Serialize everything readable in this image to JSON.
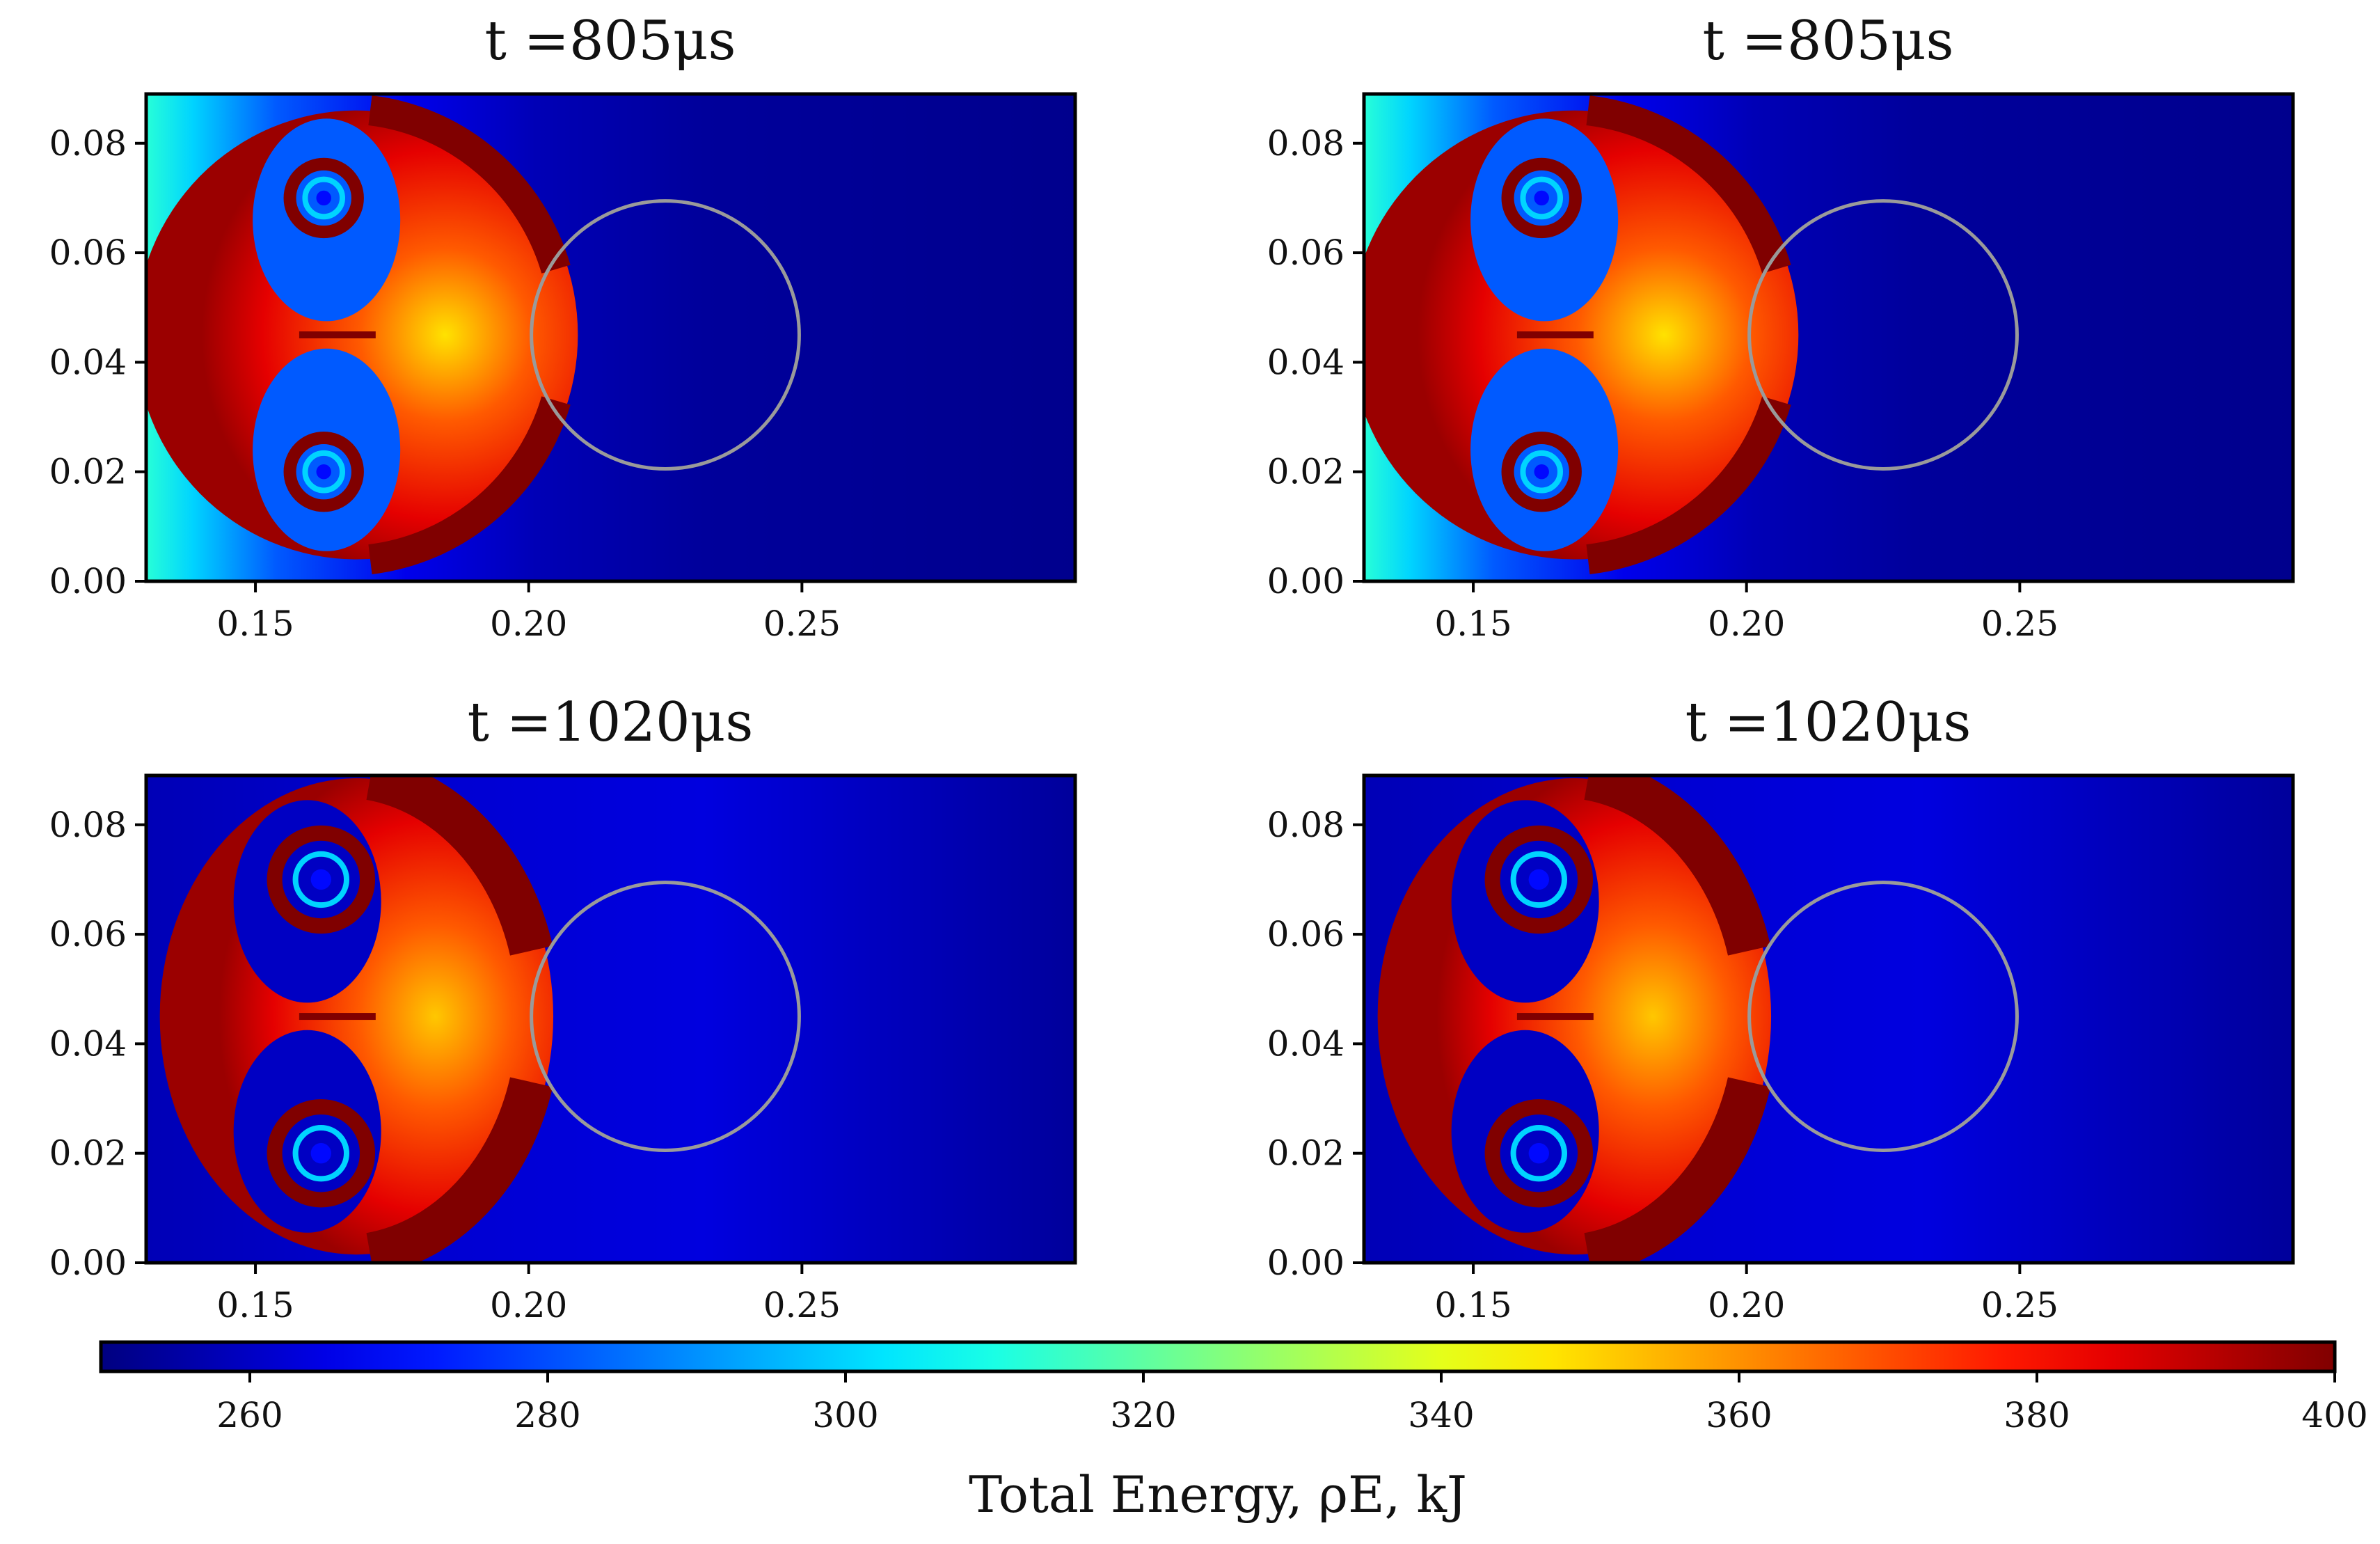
{
  "figure": {
    "colorbar": {
      "label": "Total Energy, ρE, kJ",
      "range": [
        250,
        400
      ],
      "ticks": [
        "260",
        "280",
        "300",
        "320",
        "340",
        "360",
        "380",
        "400"
      ],
      "colormap": "jet"
    }
  },
  "chart_data": [
    {
      "type": "heatmap",
      "title": "t =805μs",
      "xlim": [
        0.13,
        0.3
      ],
      "ylim": [
        0.0,
        0.089
      ],
      "xticks": [
        "0.15",
        "0.20",
        "0.25"
      ],
      "yticks": [
        "0.00",
        "0.02",
        "0.04",
        "0.06",
        "0.08"
      ],
      "circle": {
        "cx": 0.225,
        "cy": 0.045,
        "r": 0.0245,
        "color": "#9a9a9a"
      },
      "field": {
        "front_x": 0.209,
        "energy_min": 252,
        "energy_max": 400
      },
      "grid": false
    },
    {
      "type": "heatmap",
      "title": "t =805μs",
      "xlim": [
        0.13,
        0.3
      ],
      "ylim": [
        0.0,
        0.089
      ],
      "xticks": [
        "0.15",
        "0.20",
        "0.25"
      ],
      "yticks": [
        "0.00",
        "0.02",
        "0.04",
        "0.06",
        "0.08"
      ],
      "circle": {
        "cx": 0.225,
        "cy": 0.045,
        "r": 0.0245,
        "color": "#9a9a9a"
      },
      "field": {
        "front_x": 0.2095,
        "energy_min": 252,
        "energy_max": 400
      },
      "grid": false
    },
    {
      "type": "heatmap",
      "title": "t =1020μs",
      "xlim": [
        0.13,
        0.3
      ],
      "ylim": [
        0.0,
        0.089
      ],
      "xticks": [
        "0.15",
        "0.20",
        "0.25"
      ],
      "yticks": [
        "0.00",
        "0.02",
        "0.04",
        "0.06",
        "0.08"
      ],
      "circle": {
        "cx": 0.225,
        "cy": 0.045,
        "r": 0.0245,
        "color": "#9a9a9a"
      },
      "field": {
        "front_x": 0.2045,
        "energy_min": 252,
        "energy_max": 400
      },
      "grid": false
    },
    {
      "type": "heatmap",
      "title": "t =1020μs",
      "xlim": [
        0.13,
        0.3
      ],
      "ylim": [
        0.0,
        0.089
      ],
      "xticks": [
        "0.15",
        "0.20",
        "0.25"
      ],
      "yticks": [
        "0.00",
        "0.02",
        "0.04",
        "0.06",
        "0.08"
      ],
      "circle": {
        "cx": 0.225,
        "cy": 0.045,
        "r": 0.0245,
        "color": "#9a9a9a"
      },
      "field": {
        "front_x": 0.2045,
        "energy_min": 252,
        "energy_max": 400
      },
      "grid": false
    }
  ]
}
